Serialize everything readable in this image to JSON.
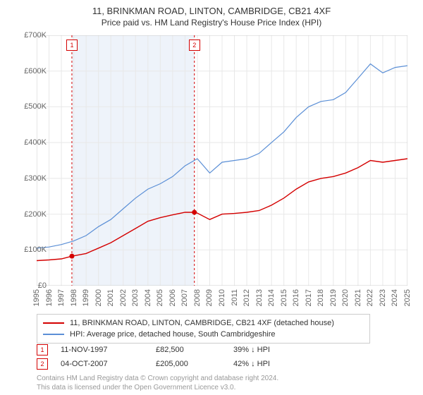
{
  "title_main": "11, BRINKMAN ROAD, LINTON, CAMBRIDGE, CB21 4XF",
  "title_sub": "Price paid vs. HM Land Registry's House Price Index (HPI)",
  "chart": {
    "type": "line",
    "background_color": "#ffffff",
    "grid_color": "#e8e8e8",
    "shaded_band_color": "#eef3fa",
    "xlim": [
      1995,
      2025
    ],
    "ylim": [
      0,
      700000
    ],
    "x_ticks": [
      1995,
      1996,
      1997,
      1998,
      1999,
      2000,
      2001,
      2002,
      2003,
      2004,
      2005,
      2006,
      2007,
      2008,
      2009,
      2010,
      2011,
      2012,
      2013,
      2014,
      2015,
      2016,
      2017,
      2018,
      2019,
      2020,
      2021,
      2022,
      2023,
      2024,
      2025
    ],
    "y_ticks": [
      0,
      100000,
      200000,
      300000,
      400000,
      500000,
      600000,
      700000
    ],
    "y_tick_labels": [
      "£0",
      "£100K",
      "£200K",
      "£300K",
      "£400K",
      "£500K",
      "£600K",
      "£700K"
    ],
    "shaded_band": {
      "x_start": 1997.85,
      "x_end": 2007.76
    },
    "markers": [
      {
        "id": "1",
        "x": 1997.85,
        "y": 82500
      },
      {
        "id": "2",
        "x": 2007.76,
        "y": 205000
      }
    ],
    "marker_line_color": "#d40000",
    "marker_dot_color": "#d40000",
    "series": [
      {
        "name": "property",
        "color": "#d40000",
        "width": 1.4,
        "legend": "11, BRINKMAN ROAD, LINTON, CAMBRIDGE, CB21 4XF (detached house)",
        "points": [
          [
            1995,
            70000
          ],
          [
            1996,
            72000
          ],
          [
            1997,
            75000
          ],
          [
            1997.85,
            82500
          ],
          [
            1999,
            90000
          ],
          [
            2000,
            105000
          ],
          [
            2001,
            120000
          ],
          [
            2002,
            140000
          ],
          [
            2003,
            160000
          ],
          [
            2004,
            180000
          ],
          [
            2005,
            190000
          ],
          [
            2006,
            198000
          ],
          [
            2007,
            205000
          ],
          [
            2007.76,
            205000
          ],
          [
            2008,
            203000
          ],
          [
            2009,
            185000
          ],
          [
            2010,
            200000
          ],
          [
            2011,
            202000
          ],
          [
            2012,
            205000
          ],
          [
            2013,
            210000
          ],
          [
            2014,
            225000
          ],
          [
            2015,
            245000
          ],
          [
            2016,
            270000
          ],
          [
            2017,
            290000
          ],
          [
            2018,
            300000
          ],
          [
            2019,
            305000
          ],
          [
            2020,
            315000
          ],
          [
            2021,
            330000
          ],
          [
            2022,
            350000
          ],
          [
            2023,
            345000
          ],
          [
            2024,
            350000
          ],
          [
            2025,
            355000
          ]
        ]
      },
      {
        "name": "hpi",
        "color": "#5b8fd6",
        "width": 1.2,
        "legend": "HPI: Average price, detached house, South Cambridgeshire",
        "points": [
          [
            1995,
            105000
          ],
          [
            1996,
            108000
          ],
          [
            1997,
            115000
          ],
          [
            1998,
            125000
          ],
          [
            1999,
            140000
          ],
          [
            2000,
            165000
          ],
          [
            2001,
            185000
          ],
          [
            2002,
            215000
          ],
          [
            2003,
            245000
          ],
          [
            2004,
            270000
          ],
          [
            2005,
            285000
          ],
          [
            2006,
            305000
          ],
          [
            2007,
            335000
          ],
          [
            2008,
            355000
          ],
          [
            2009,
            315000
          ],
          [
            2010,
            345000
          ],
          [
            2011,
            350000
          ],
          [
            2012,
            355000
          ],
          [
            2013,
            370000
          ],
          [
            2014,
            400000
          ],
          [
            2015,
            430000
          ],
          [
            2016,
            470000
          ],
          [
            2017,
            500000
          ],
          [
            2018,
            515000
          ],
          [
            2019,
            520000
          ],
          [
            2020,
            540000
          ],
          [
            2021,
            580000
          ],
          [
            2022,
            620000
          ],
          [
            2023,
            595000
          ],
          [
            2024,
            610000
          ],
          [
            2025,
            615000
          ]
        ]
      }
    ]
  },
  "legend": {
    "rows": [
      {
        "color": "#d40000",
        "label_path": "chart.series.0.legend"
      },
      {
        "color": "#5b8fd6",
        "label_path": "chart.series.1.legend"
      }
    ]
  },
  "sales": [
    {
      "id": "1",
      "date": "11-NOV-1997",
      "price": "£82,500",
      "pct": "39% ↓ HPI"
    },
    {
      "id": "2",
      "date": "04-OCT-2007",
      "price": "£205,000",
      "pct": "42% ↓ HPI"
    }
  ],
  "footnote_1": "Contains HM Land Registry data © Crown copyright and database right 2024.",
  "footnote_2": "This data is licensed under the Open Government Licence v3.0."
}
